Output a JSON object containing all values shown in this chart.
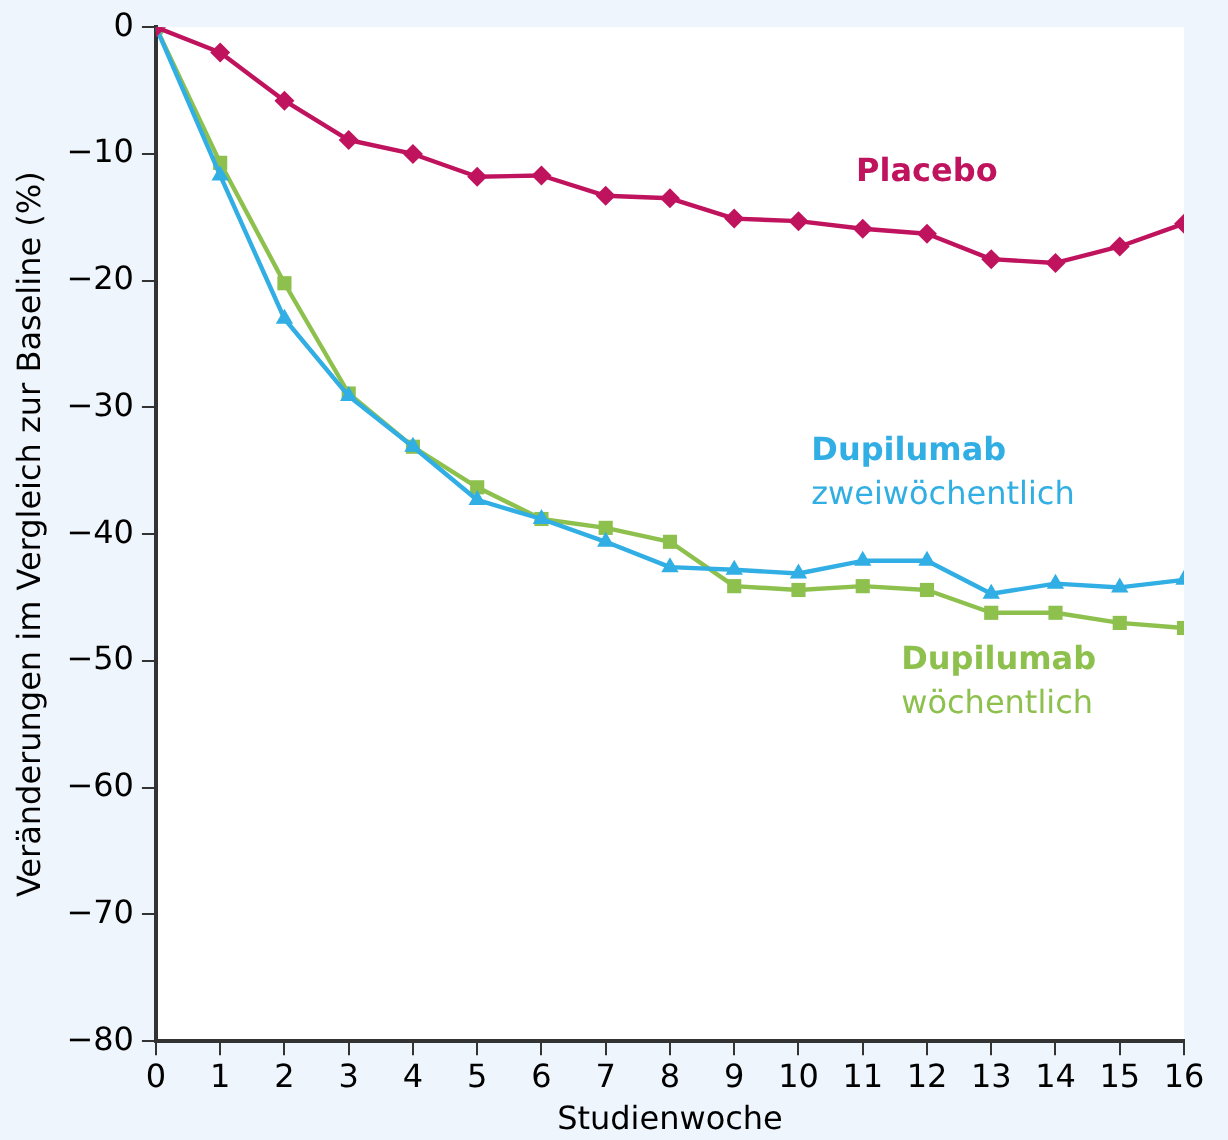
{
  "chart_data": {
    "type": "line",
    "xlabel": "Studienwoche",
    "ylabel": "Veränderungen im Vergleich zur Baseline (%)",
    "x": [
      0,
      1,
      2,
      3,
      4,
      5,
      6,
      7,
      8,
      9,
      10,
      11,
      12,
      13,
      14,
      15,
      16
    ],
    "xlim": [
      0,
      16
    ],
    "xticks": [
      0,
      1,
      2,
      3,
      4,
      5,
      6,
      7,
      8,
      9,
      10,
      11,
      12,
      13,
      14,
      15,
      16
    ],
    "ylim": [
      -80,
      0
    ],
    "yticks": [
      -80,
      -70,
      -60,
      -50,
      -40,
      -30,
      -20,
      -10,
      0
    ],
    "grid": false,
    "legend": false,
    "series": [
      {
        "name": "Placebo",
        "color": "#c0135e",
        "marker": "diamond",
        "values": [
          0,
          -2.0,
          -5.8,
          -8.9,
          -10.0,
          -11.8,
          -11.7,
          -13.3,
          -13.5,
          -15.1,
          -15.3,
          -15.9,
          -16.3,
          -18.3,
          -18.6,
          -17.3,
          -15.5
        ]
      },
      {
        "name": "Dupilumab zweiwöchentlich",
        "color": "#31aee3",
        "marker": "triangle",
        "values": [
          0,
          -11.7,
          -23.0,
          -29.1,
          -33.1,
          -37.3,
          -38.8,
          -40.6,
          -42.6,
          -42.8,
          -43.1,
          -42.1,
          -42.1,
          -44.7,
          -43.9,
          -44.2,
          -43.6
        ]
      },
      {
        "name": "Dupilumab wöchentlich",
        "color": "#8dc04d",
        "marker": "square",
        "values": [
          0,
          -10.7,
          -20.2,
          -28.9,
          -33.1,
          -36.3,
          -38.8,
          -39.5,
          -40.6,
          -44.1,
          -44.4,
          -44.1,
          -44.4,
          -46.2,
          -46.2,
          -47.0,
          -47.4
        ]
      }
    ]
  }
}
